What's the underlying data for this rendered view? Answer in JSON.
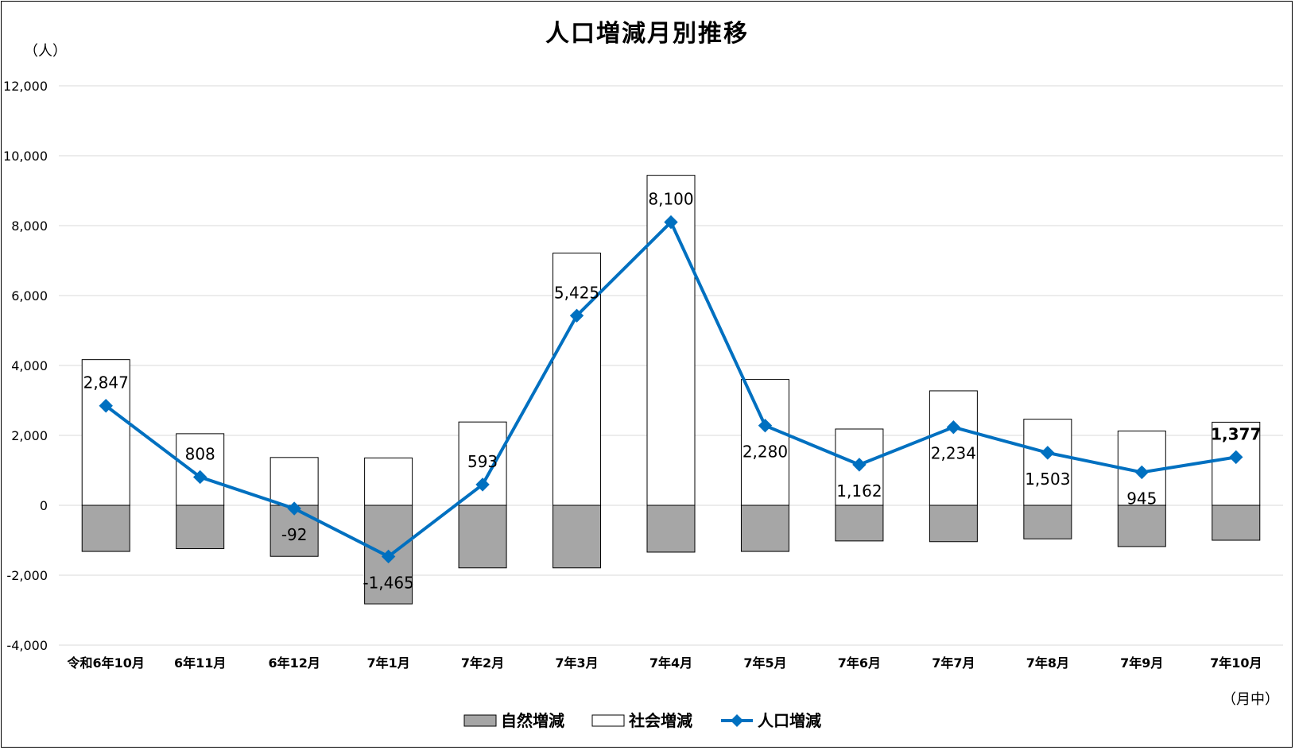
{
  "chart_data": {
    "type": "bar",
    "title": "人口増減月別推移",
    "y_unit_label": "（人）",
    "x_unit_label": "（月中）",
    "categories": [
      "令和6年10月",
      "6年11月",
      "6年12月",
      "7年1月",
      "7年2月",
      "7年3月",
      "7年4月",
      "7年5月",
      "7年6月",
      "7年7月",
      "7年8月",
      "7年9月",
      "7年10月"
    ],
    "series": [
      {
        "name": "自然増減",
        "type": "bar",
        "color": "#a6a6a6",
        "values": [
          -1320,
          -1240,
          -1460,
          -2820,
          -1790,
          -1790,
          -1340,
          -1320,
          -1020,
          -1040,
          -960,
          -1180,
          -1000
        ]
      },
      {
        "name": "社会増減",
        "type": "bar",
        "color": "#ffffff",
        "values": [
          4167,
          2048,
          1368,
          1355,
          2383,
          7215,
          9440,
          3600,
          2182,
          3274,
          2463,
          2125,
          2377
        ]
      },
      {
        "name": "人口増減",
        "type": "line",
        "color": "#0070c0",
        "values": [
          2847,
          808,
          -92,
          -1465,
          593,
          5425,
          8100,
          2280,
          1162,
          2234,
          1503,
          945,
          1377
        ]
      }
    ],
    "data_labels": [
      "2,847",
      "808",
      "-92",
      "-1,465",
      "593",
      "5,425",
      "8,100",
      "2,280",
      "1,162",
      "2,234",
      "1,503",
      "945",
      "1,377"
    ],
    "y_ticks": [
      "12,000",
      "10,000",
      "8,000",
      "6,000",
      "4,000",
      "2,000",
      "0",
      "-2,000",
      "-4,000"
    ],
    "ylim": [
      -4000,
      12000
    ],
    "grid": true,
    "legend_position": "bottom-center"
  }
}
